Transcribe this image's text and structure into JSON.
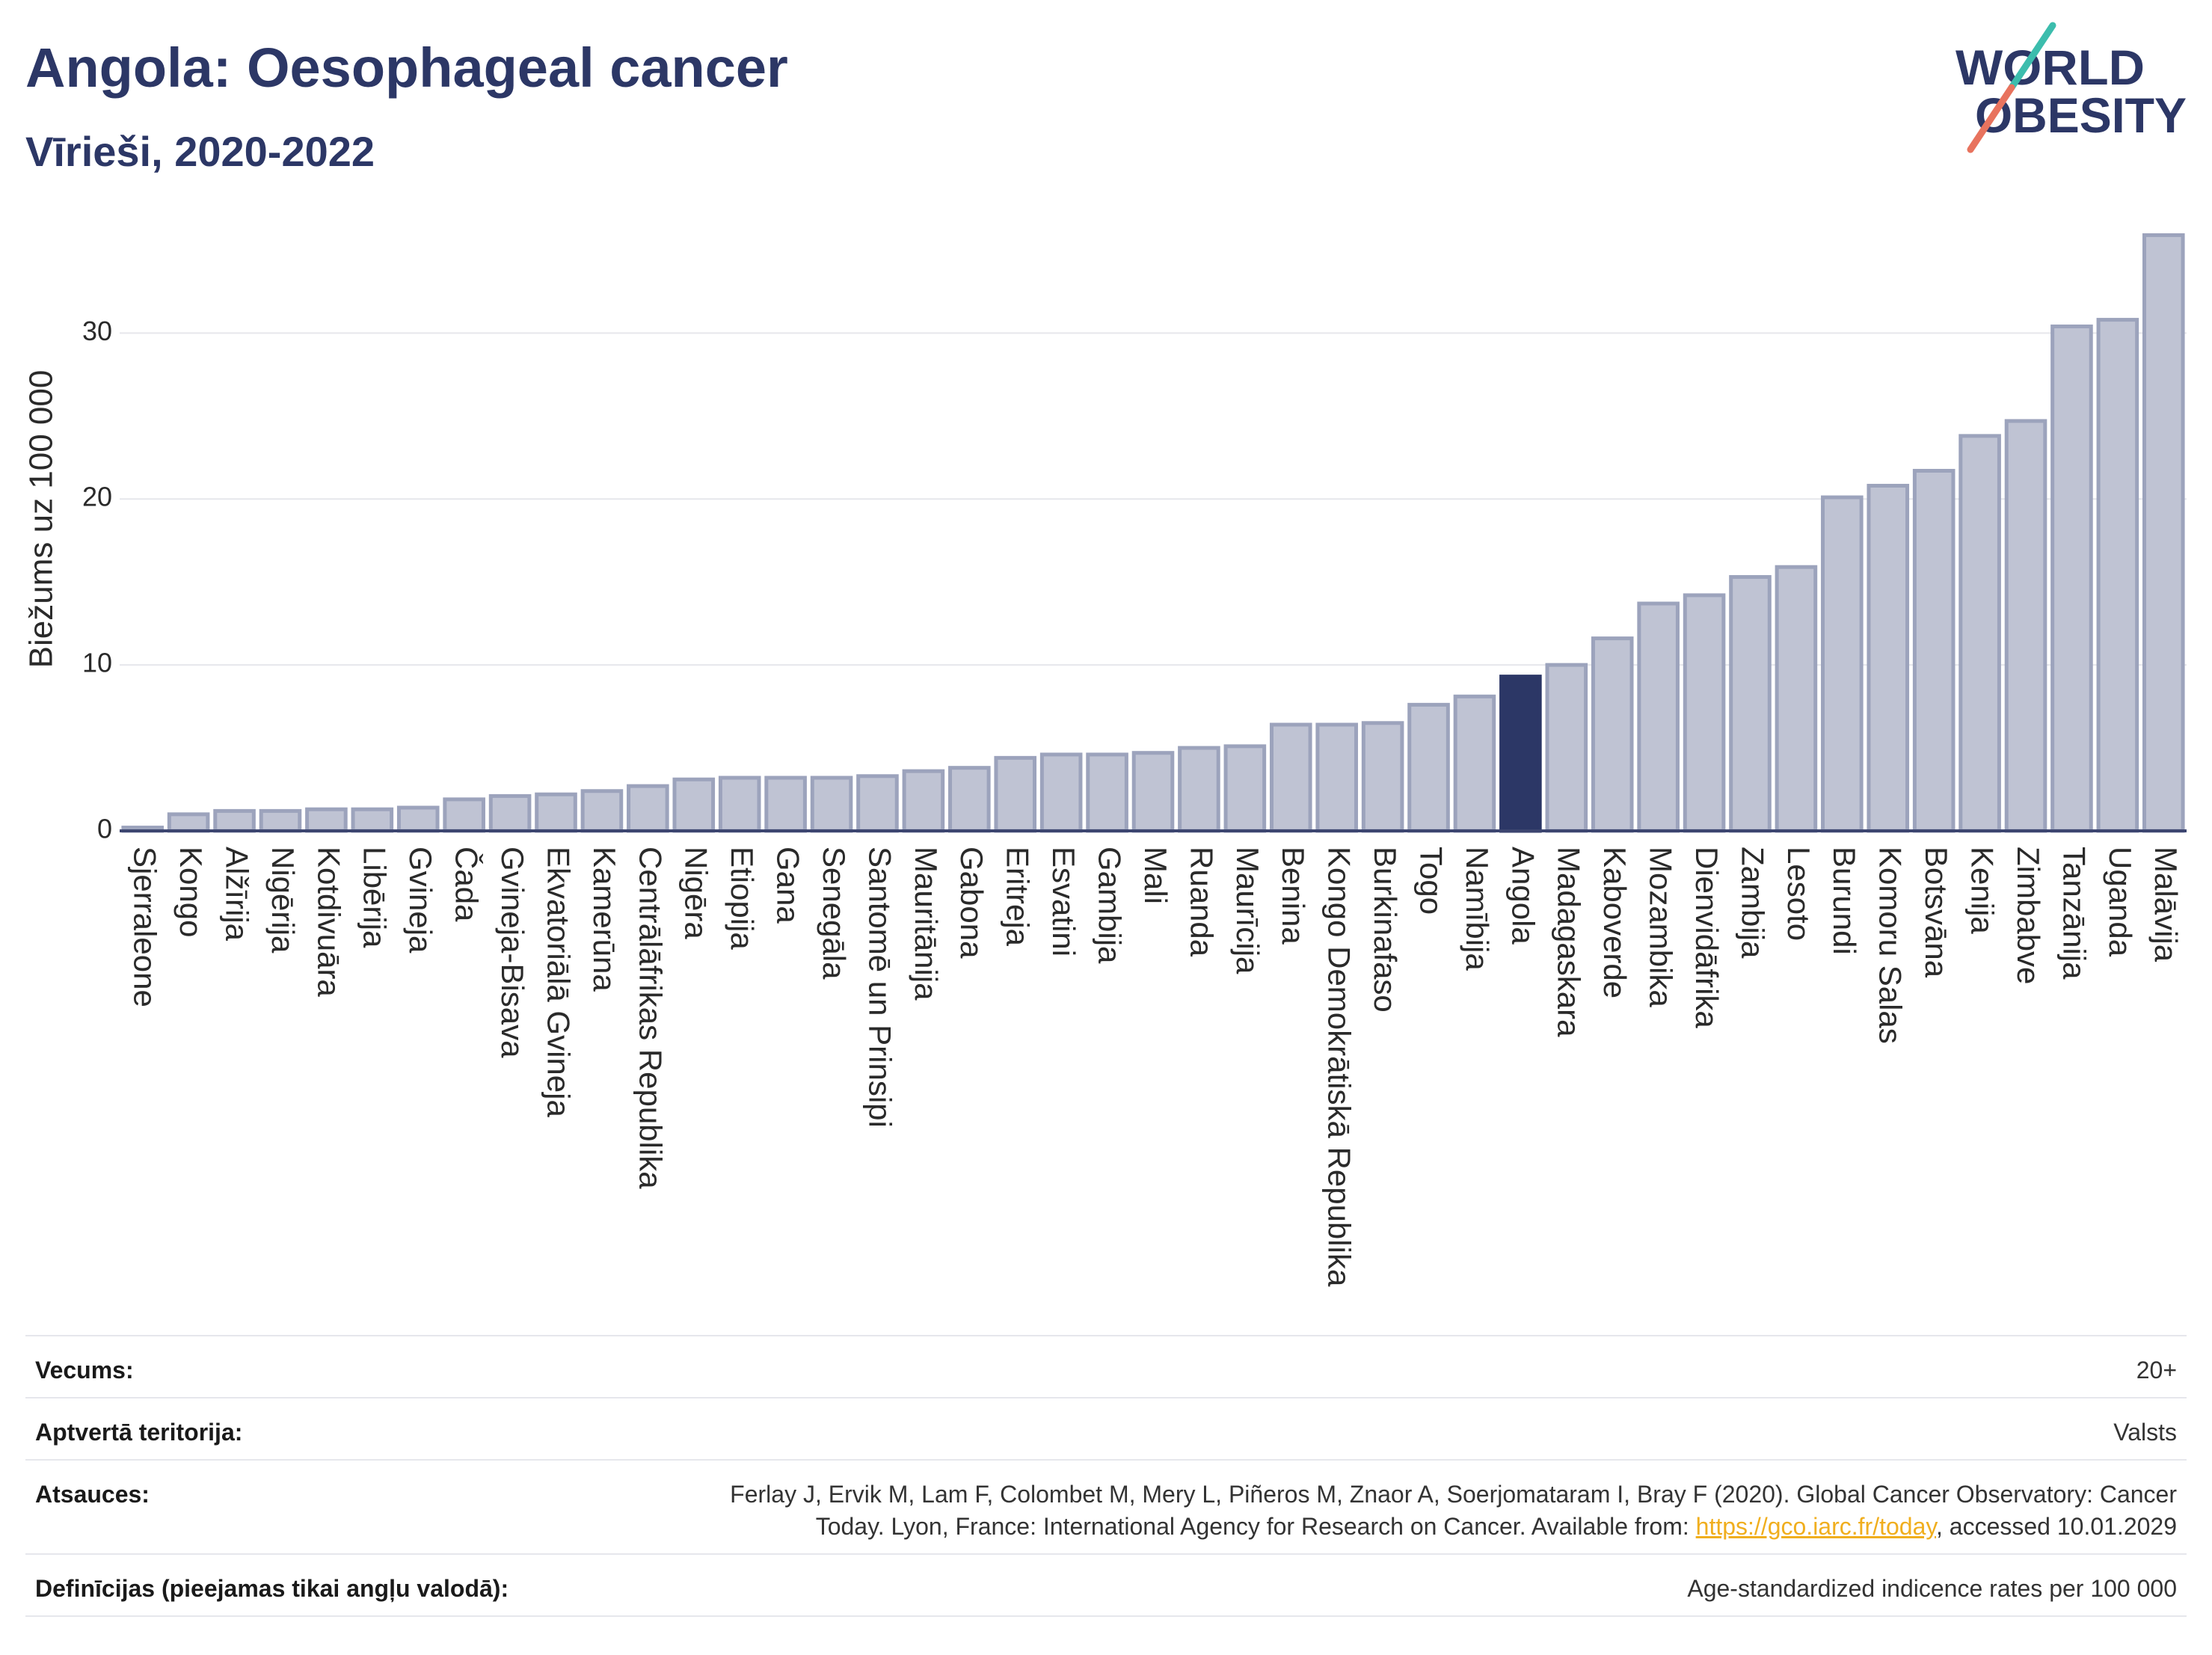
{
  "colors": {
    "navy": "#2c3766",
    "bar_fill": "#bfc3d3",
    "bar_border": "#9ca3bc",
    "highlight": "#2c3766",
    "axis": "#3c4570",
    "gridline": "#e6e7ec",
    "link": "#f0ae1e",
    "logo_teal": "#3cbdad",
    "logo_coral": "#e8735e"
  },
  "logo": {
    "line1": "WORLD",
    "line2": "OBESITY"
  },
  "chart_data": {
    "type": "bar",
    "title": "Angola: Oesophageal cancer",
    "subtitle": "Vīrieši, 2020-2022",
    "ylabel": "Biežums uz 100 000",
    "categories": [
      "Sjerraleone",
      "Kongo",
      "Alžīrija",
      "Nigērija",
      "Kotdivuāra",
      "Libērija",
      "Gvineja",
      "Čada",
      "Gvineja-Bisava",
      "Ekvatoriālā Gvineja",
      "Kamerūna",
      "Centrālāfrikas Republika",
      "Nigēra",
      "Etiopija",
      "Gana",
      "Senegāla",
      "Santomē un Prinsipi",
      "Mauritānija",
      "Gabona",
      "Eritreja",
      "Esvatini",
      "Gambija",
      "Mali",
      "Ruanda",
      "Maurīcija",
      "Benina",
      "Kongo Demokrātiskā Republika",
      "Burkinafaso",
      "Togo",
      "Namībija",
      "Angola",
      "Madagaskara",
      "Kaboverde",
      "Mozambika",
      "Dienvidāfrika",
      "Zambija",
      "Lesoto",
      "Burundi",
      "Komoru Salas",
      "Botsvāna",
      "Kenija",
      "Zimbabve",
      "Tanzānija",
      "Uganda",
      "Malāvija"
    ],
    "values": [
      0.2,
      1.0,
      1.2,
      1.2,
      1.3,
      1.3,
      1.4,
      1.9,
      2.1,
      2.2,
      2.4,
      2.7,
      3.1,
      3.2,
      3.2,
      3.2,
      3.3,
      3.6,
      3.8,
      4.4,
      4.6,
      4.6,
      4.7,
      5.0,
      5.1,
      6.4,
      6.4,
      6.5,
      7.6,
      8.1,
      9.3,
      10.0,
      11.6,
      13.7,
      14.2,
      15.3,
      15.9,
      20.1,
      20.8,
      21.7,
      23.8,
      24.7,
      30.4,
      30.8,
      35.9
    ],
    "highlight": "Angola",
    "ylim": [
      0,
      37
    ],
    "yticks": [
      0,
      10,
      20,
      30
    ],
    "grid": true
  },
  "footer": {
    "age": {
      "label": "Vecums:",
      "value": "20+"
    },
    "coverage": {
      "label": "Aptvertā teritorija:",
      "value": "Valsts"
    },
    "references": {
      "label": "Atsauces:",
      "line1": "Ferlay J, Ervik M, Lam F, Colombet M, Mery L, Piñeros M, Znaor A, Soerjomataram I, Bray F (2020). Global Cancer Observatory: Cancer",
      "line2_before_link": "Today. Lyon, France: International Agency for Research on Cancer. Available from: ",
      "link": "https://gco.iarc.fr/today",
      "line2_after_link": ", accessed 10.01.2029"
    },
    "definitions": {
      "label": "Definīcijas (pieejamas tikai angļu valodā):",
      "value": "Age-standardized indicence rates per 100 000"
    }
  }
}
